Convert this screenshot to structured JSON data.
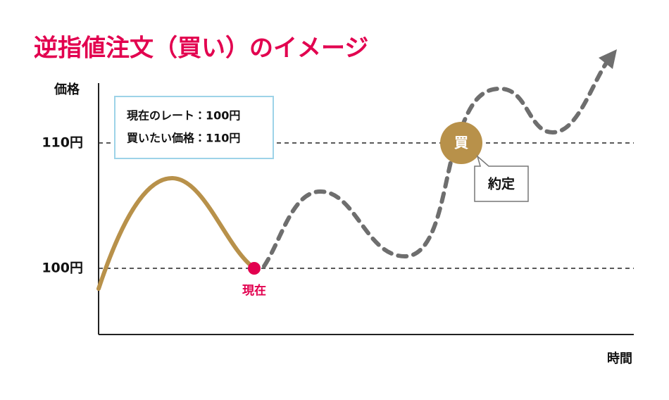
{
  "title": "逆指値注文（買い）のイメージ",
  "y_axis_label": "価格",
  "x_axis_label": "時間",
  "levels": [
    "110円",
    "100円"
  ],
  "info_box": [
    "現在のレート：100円",
    "買いたい価格：110円"
  ],
  "current_label": "現在",
  "buy_marker": "買",
  "callout": "約定"
}
